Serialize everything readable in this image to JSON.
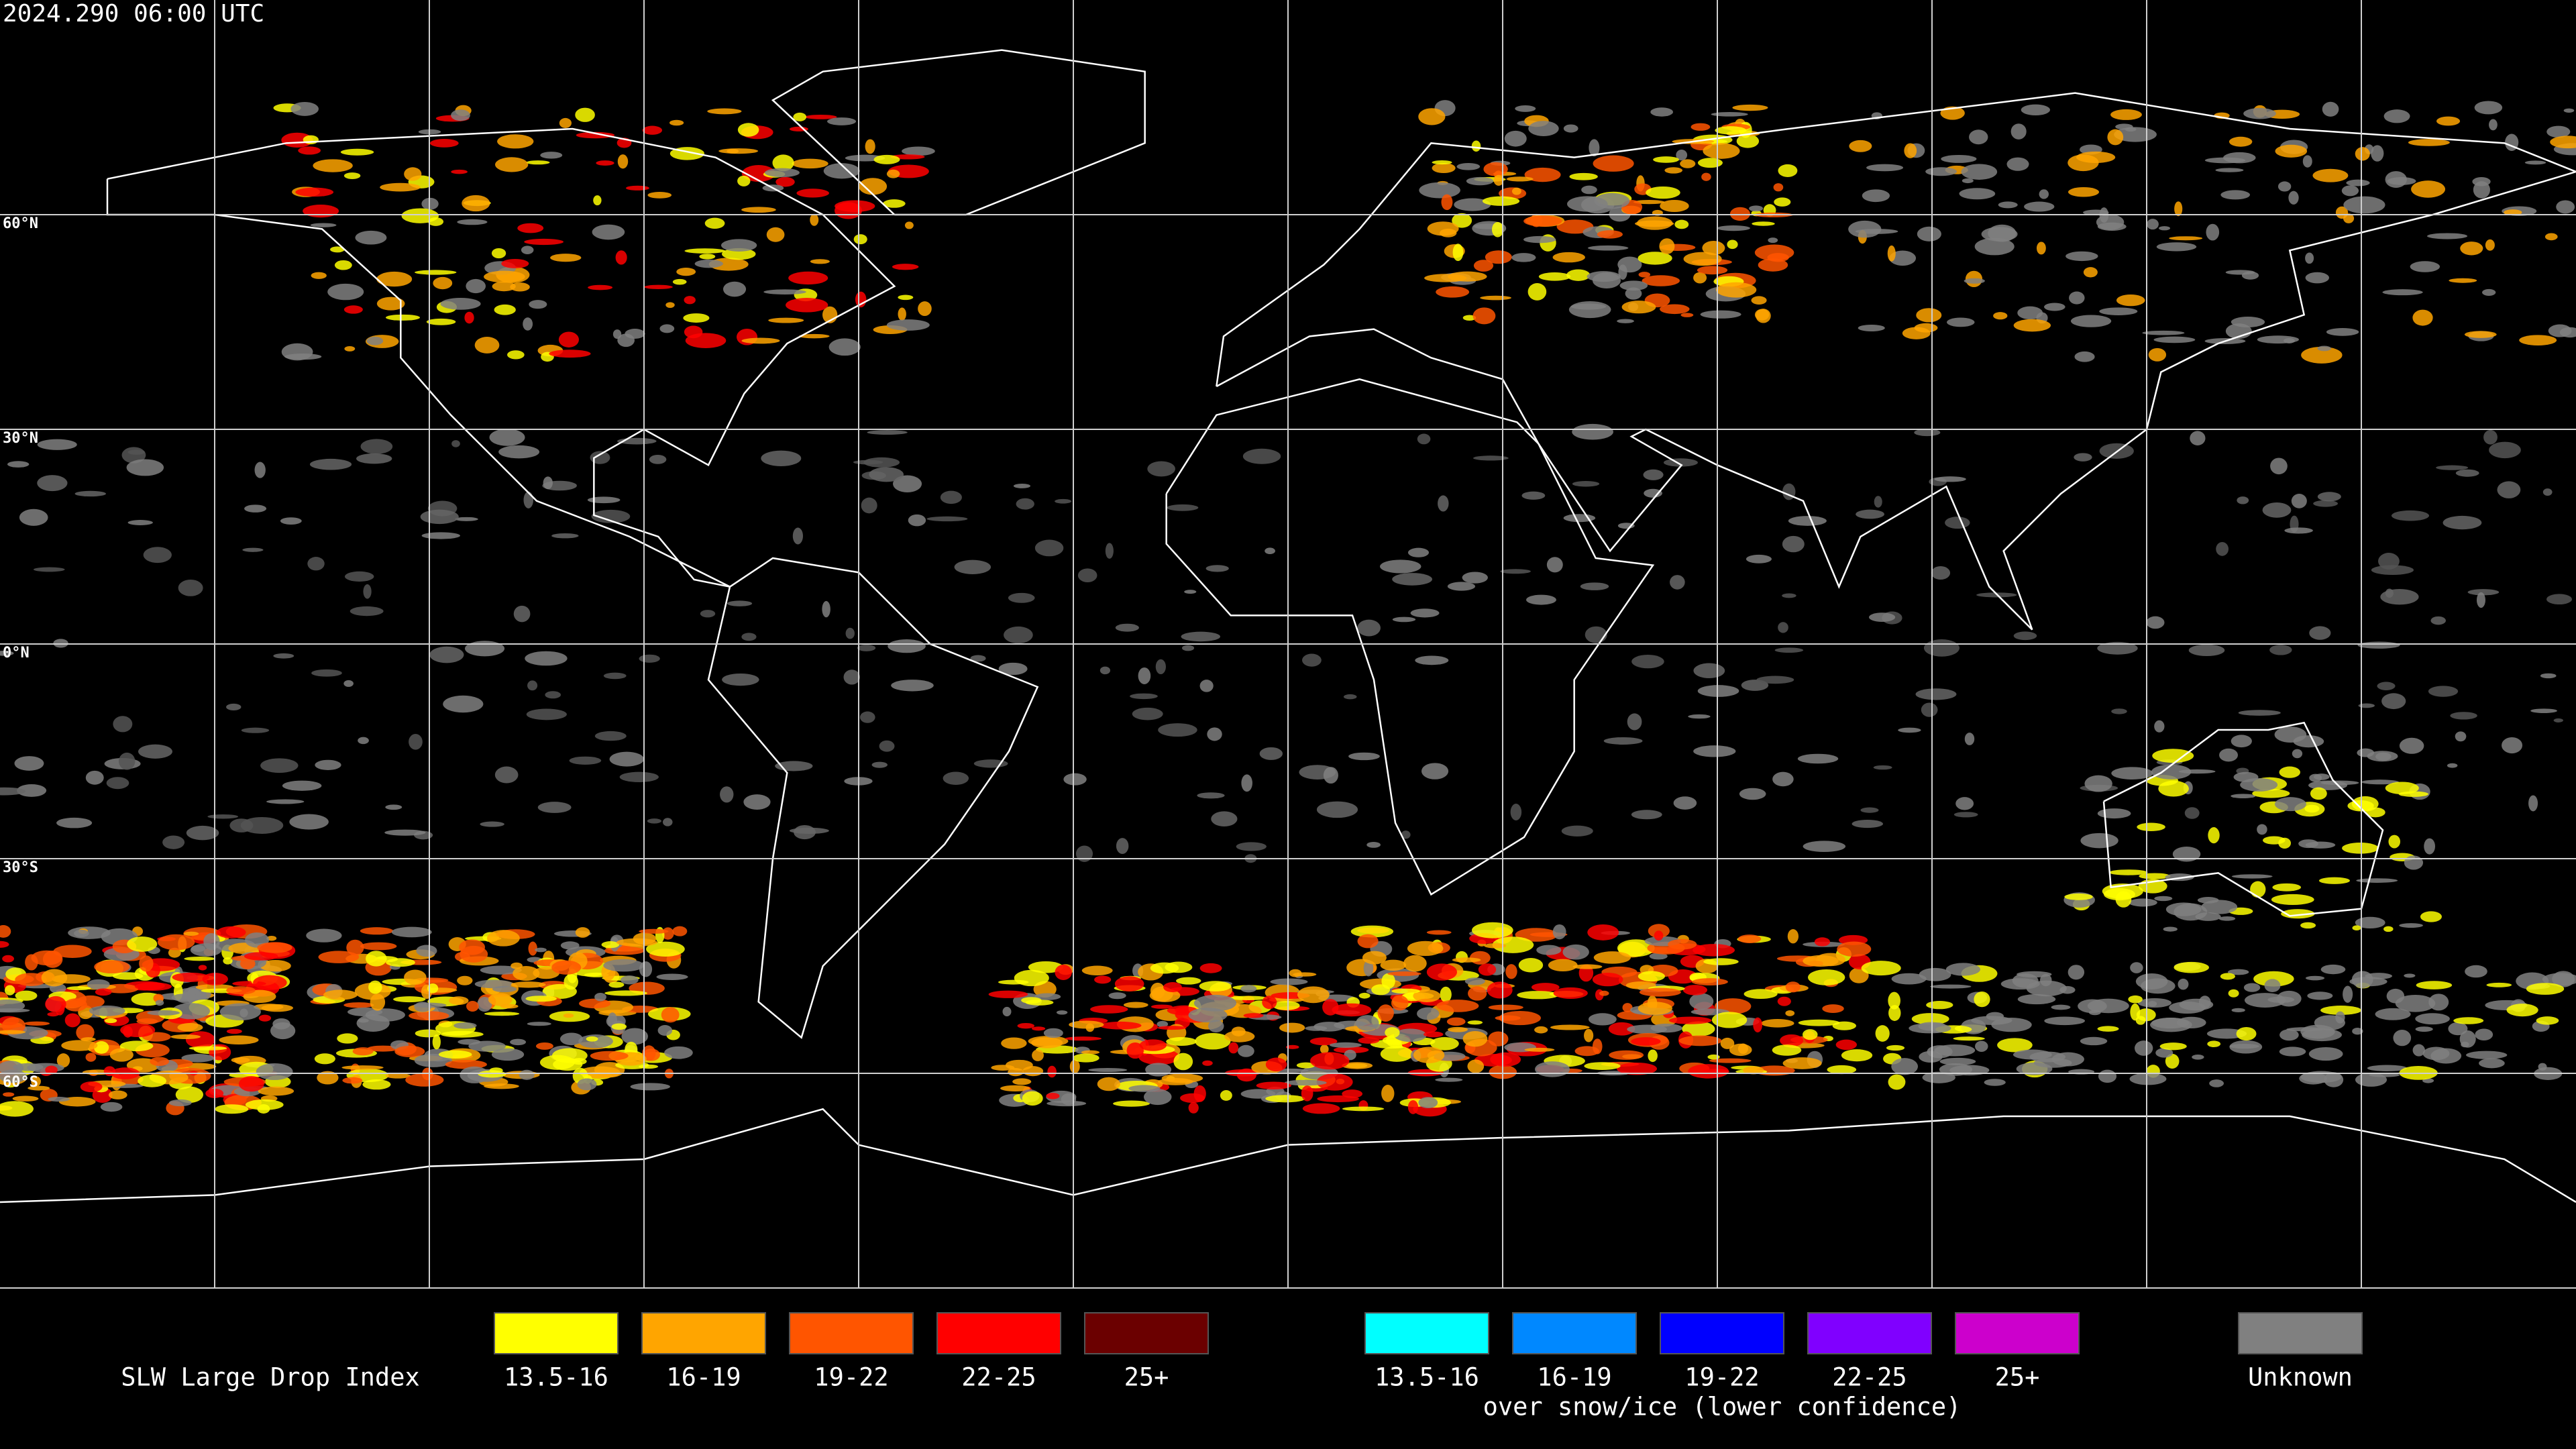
{
  "timestamp": "2024.290 06:00 UTC",
  "latitude_labels": [
    "60°N",
    "30°N",
    "0°N",
    "30°S",
    "60°S"
  ],
  "legend": {
    "title": "SLW Large Drop Index",
    "groups": [
      {
        "items": [
          {
            "label": "13.5-16",
            "color": "#ffff00"
          },
          {
            "label": "16-19",
            "color": "#ffa500"
          },
          {
            "label": "19-22",
            "color": "#ff5500"
          },
          {
            "label": "22-25",
            "color": "#ff0000"
          },
          {
            "label": "25+",
            "color": "#6b0000"
          }
        ]
      },
      {
        "items": [
          {
            "label": "13.5-16",
            "color": "#00ffff"
          },
          {
            "label": "16-19",
            "color": "#0088ff"
          },
          {
            "label": "19-22",
            "color": "#0000ff"
          },
          {
            "label": "22-25",
            "color": "#8000ff"
          },
          {
            "label": "25+",
            "color": "#cc00cc"
          }
        ],
        "caption": "over snow/ice (lower confidence)"
      },
      {
        "items": [
          {
            "label": "Unknown",
            "color": "#808080"
          }
        ]
      }
    ]
  }
}
